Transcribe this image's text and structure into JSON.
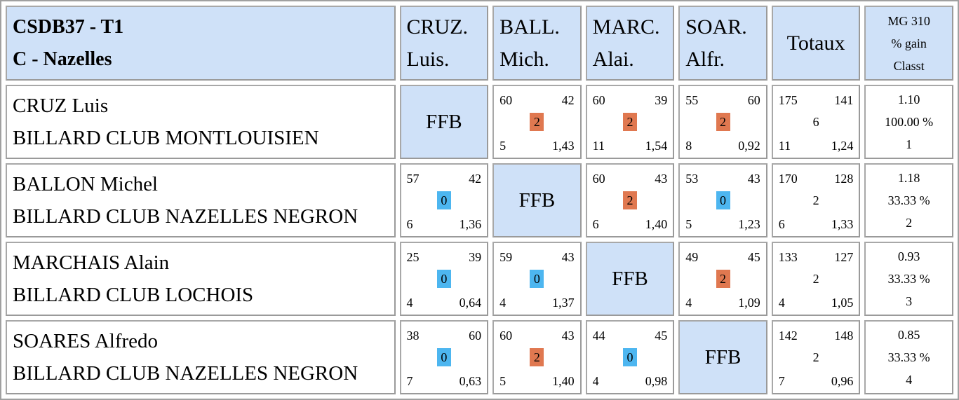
{
  "header": {
    "title_line1": "CSDB37 - T1",
    "title_line2": "C - Nazelles",
    "columns": [
      {
        "line1": "CRUZ.",
        "line2": "Luis."
      },
      {
        "line1": "BALL.",
        "line2": "Mich."
      },
      {
        "line1": "MARC.",
        "line2": "Alai."
      },
      {
        "line1": "SOAR.",
        "line2": "Alfr."
      }
    ],
    "totaux": "Totaux",
    "mg_line1": "MG 310",
    "mg_line2": "% gain",
    "mg_line3": "Classt"
  },
  "ffb_label": "FFB",
  "colors": {
    "header_bg": "#cfe1f8",
    "win_badge": "#e07850",
    "loss_badge": "#4db6f0"
  },
  "rows": [
    {
      "name": "CRUZ Luis",
      "club": "BILLARD CLUB MONTLOUISIEN",
      "cells": [
        null,
        {
          "tl": "60",
          "tr": "42",
          "mid": "2",
          "bl": "5",
          "br": "1,43"
        },
        {
          "tl": "60",
          "tr": "39",
          "mid": "2",
          "bl": "11",
          "br": "1,54"
        },
        {
          "tl": "55",
          "tr": "60",
          "mid": "2",
          "bl": "8",
          "br": "0,92"
        }
      ],
      "totaux": {
        "tl": "175",
        "tr": "141",
        "mid": "6",
        "bl": "11",
        "br": "1,24"
      },
      "stats": {
        "mg": "1.10",
        "pct": "100.00 %",
        "rank": "1"
      }
    },
    {
      "name": "BALLON Michel",
      "club": "BILLARD CLUB NAZELLES NEGRON",
      "cells": [
        {
          "tl": "57",
          "tr": "42",
          "mid": "0",
          "bl": "6",
          "br": "1,36"
        },
        null,
        {
          "tl": "60",
          "tr": "43",
          "mid": "2",
          "bl": "6",
          "br": "1,40"
        },
        {
          "tl": "53",
          "tr": "43",
          "mid": "0",
          "bl": "5",
          "br": "1,23"
        }
      ],
      "totaux": {
        "tl": "170",
        "tr": "128",
        "mid": "2",
        "bl": "6",
        "br": "1,33"
      },
      "stats": {
        "mg": "1.18",
        "pct": "33.33 %",
        "rank": "2"
      }
    },
    {
      "name": "MARCHAIS Alain",
      "club": "BILLARD CLUB LOCHOIS",
      "cells": [
        {
          "tl": "25",
          "tr": "39",
          "mid": "0",
          "bl": "4",
          "br": "0,64"
        },
        {
          "tl": "59",
          "tr": "43",
          "mid": "0",
          "bl": "4",
          "br": "1,37"
        },
        null,
        {
          "tl": "49",
          "tr": "45",
          "mid": "2",
          "bl": "4",
          "br": "1,09"
        }
      ],
      "totaux": {
        "tl": "133",
        "tr": "127",
        "mid": "2",
        "bl": "4",
        "br": "1,05"
      },
      "stats": {
        "mg": "0.93",
        "pct": "33.33 %",
        "rank": "3"
      }
    },
    {
      "name": "SOARES Alfredo",
      "club": "BILLARD CLUB NAZELLES NEGRON",
      "cells": [
        {
          "tl": "38",
          "tr": "60",
          "mid": "0",
          "bl": "7",
          "br": "0,63"
        },
        {
          "tl": "60",
          "tr": "43",
          "mid": "2",
          "bl": "5",
          "br": "1,40"
        },
        {
          "tl": "44",
          "tr": "45",
          "mid": "0",
          "bl": "4",
          "br": "0,98"
        },
        null
      ],
      "totaux": {
        "tl": "142",
        "tr": "148",
        "mid": "2",
        "bl": "7",
        "br": "0,96"
      },
      "stats": {
        "mg": "0.85",
        "pct": "33.33 %",
        "rank": "4"
      }
    }
  ]
}
